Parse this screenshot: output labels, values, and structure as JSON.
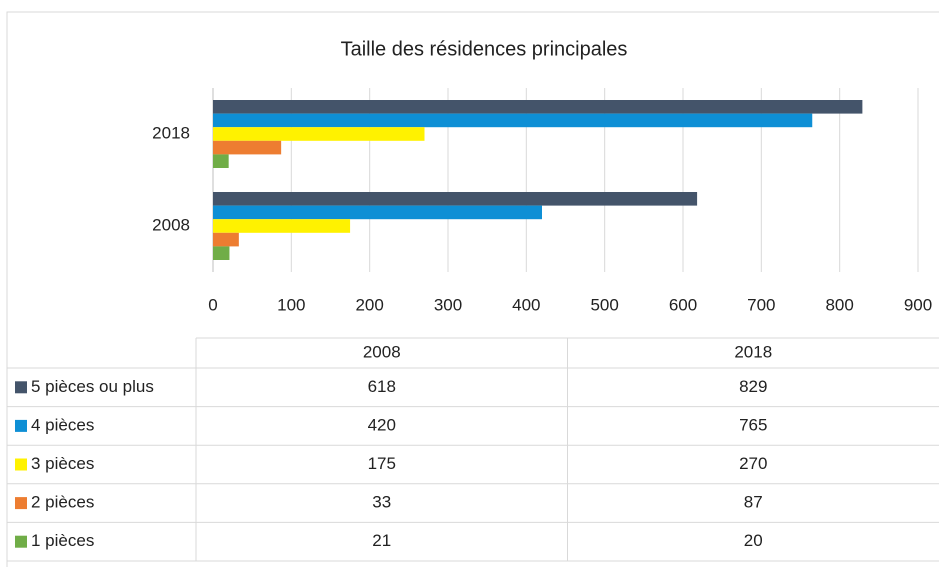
{
  "chart_data": {
    "type": "bar",
    "orientation": "horizontal",
    "title": "Taille des résidences principales",
    "categories": [
      "2008",
      "2018"
    ],
    "series": [
      {
        "name": "5 pièces ou plus",
        "color": "#44546a",
        "values": [
          618,
          829
        ]
      },
      {
        "name": "4 pièces",
        "color": "#0e8fd5",
        "values": [
          420,
          765
        ]
      },
      {
        "name": "3 pièces",
        "color": "#fff200",
        "values": [
          175,
          270
        ]
      },
      {
        "name": "2 pièces",
        "color": "#ed7d31",
        "values": [
          33,
          87
        ]
      },
      {
        "name": "1 pièces",
        "color": "#70ad47",
        "values": [
          21,
          20
        ]
      }
    ],
    "xlim": [
      0,
      900
    ],
    "xticks": [
      0,
      100,
      200,
      300,
      400,
      500,
      600,
      700,
      800,
      900
    ],
    "grid": true,
    "data_table": true
  }
}
